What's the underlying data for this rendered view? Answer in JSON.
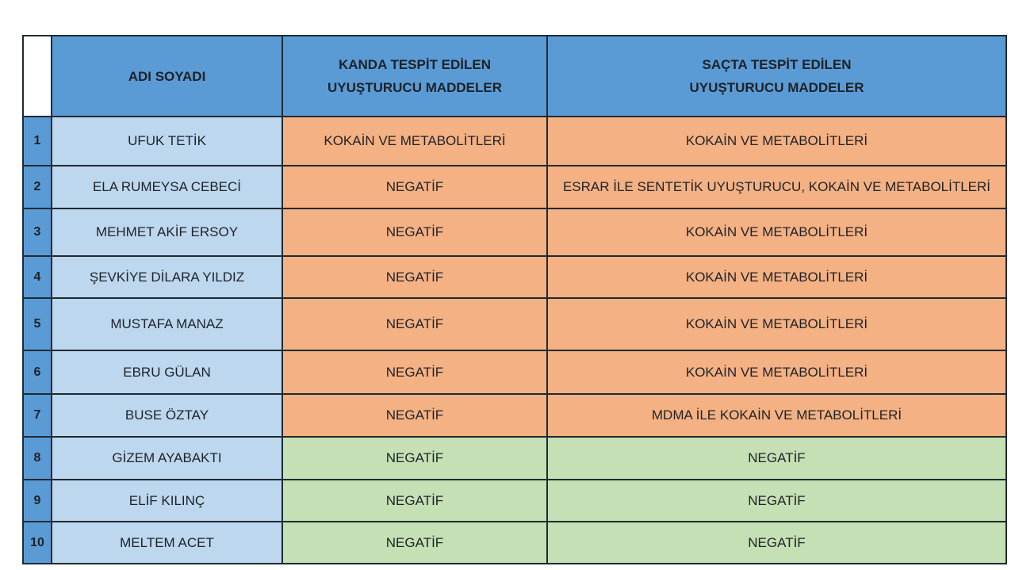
{
  "colors": {
    "header": "#5b9bd5",
    "name_cell": "#bdd7ee",
    "positive": "#f4b183",
    "negative": "#c5e0b4"
  },
  "headers": [
    "ADI SOYADI",
    "KANDA TESPİT EDİLEN UYUŞTURUCU MADDELER",
    "SAÇTA TESPİT EDİLEN UYUŞTURUCU MADDELER"
  ],
  "header_lines": {
    "blood": [
      "KANDA TESPİT EDİLEN",
      "UYUŞTURUCU MADDELER"
    ],
    "hair": [
      "SAÇTA TESPİT EDİLEN",
      "UYUŞTURUCU MADDELER"
    ]
  },
  "rows": [
    {
      "no": "1",
      "name": "UFUK TETİK",
      "blood": "KOKAİN VE METABOLİTLERİ",
      "hair": "KOKAİN VE METABOLİTLERİ",
      "status": "pos"
    },
    {
      "no": "2",
      "name": "ELA RUMEYSA CEBECİ",
      "blood": "NEGATİF",
      "hair": "ESRAR İLE SENTETİK UYUŞTURUCU, KOKAİN VE METABOLİTLERİ",
      "status": "pos"
    },
    {
      "no": "3",
      "name": "MEHMET AKİF ERSOY",
      "blood": "NEGATİF",
      "hair": "KOKAİN VE METABOLİTLERİ",
      "status": "pos"
    },
    {
      "no": "4",
      "name": "ŞEVKİYE DİLARA YILDIZ",
      "blood": "NEGATİF",
      "hair": "KOKAİN VE METABOLİTLERİ",
      "status": "pos"
    },
    {
      "no": "5",
      "name": "MUSTAFA MANAZ",
      "blood": "NEGATİF",
      "hair": "KOKAİN VE METABOLİTLERİ",
      "status": "pos"
    },
    {
      "no": "6",
      "name": "EBRU GÜLAN",
      "blood": "NEGATİF",
      "hair": "KOKAİN VE METABOLİTLERİ",
      "status": "pos"
    },
    {
      "no": "7",
      "name": "BUSE ÖZTAY",
      "blood": "NEGATİF",
      "hair": "MDMA İLE KOKAİN VE METABOLİTLERİ",
      "status": "pos"
    },
    {
      "no": "8",
      "name": "GİZEM AYABAKTI",
      "blood": "NEGATİF",
      "hair": "NEGATİF",
      "status": "neg"
    },
    {
      "no": "9",
      "name": "ELİF KILINÇ",
      "blood": "NEGATİF",
      "hair": "NEGATİF",
      "status": "neg"
    },
    {
      "no": "10",
      "name": "MELTEM ACET",
      "blood": "NEGATİF",
      "hair": "NEGATİF",
      "status": "neg"
    }
  ]
}
